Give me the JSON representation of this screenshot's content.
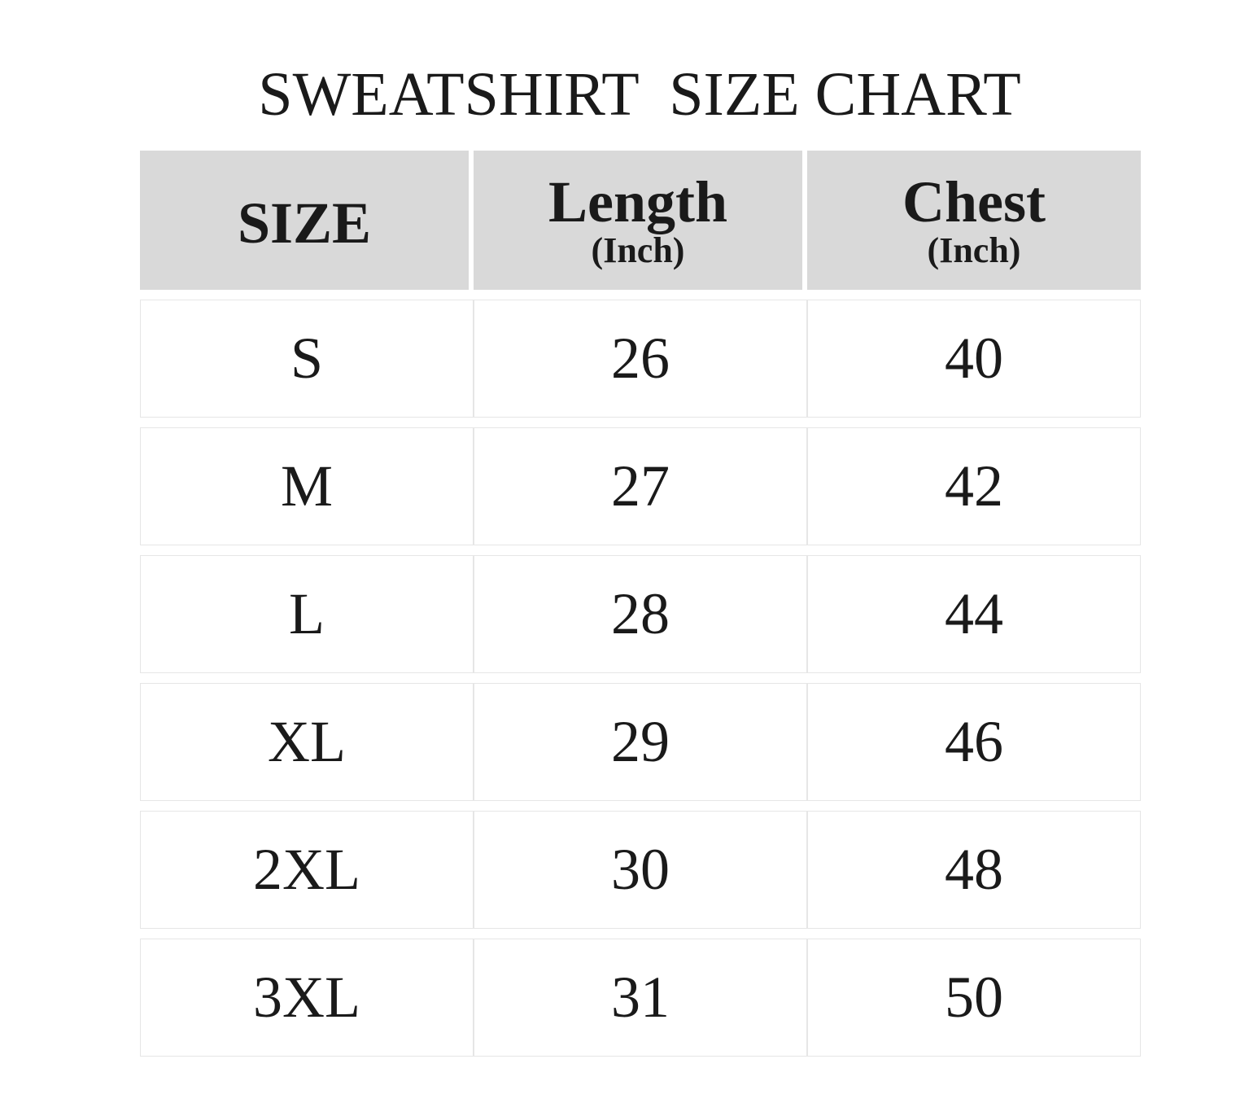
{
  "chart_data": {
    "type": "table",
    "title": "SWEATSHIRT  SIZE CHART",
    "columns": [
      {
        "label": "SIZE",
        "unit": ""
      },
      {
        "label": "Length",
        "unit": "(Inch)"
      },
      {
        "label": "Chest",
        "unit": "(Inch)"
      }
    ],
    "rows": [
      [
        "S",
        "26",
        "40"
      ],
      [
        "M",
        "27",
        "42"
      ],
      [
        "L",
        "28",
        "44"
      ],
      [
        "XL",
        "29",
        "46"
      ],
      [
        "2XL",
        "30",
        "48"
      ],
      [
        "3XL",
        "31",
        "50"
      ]
    ],
    "colors": {
      "header_bg": "#d9d9d9",
      "border": "#e6e6e6",
      "text": "#1a1a1a"
    }
  }
}
